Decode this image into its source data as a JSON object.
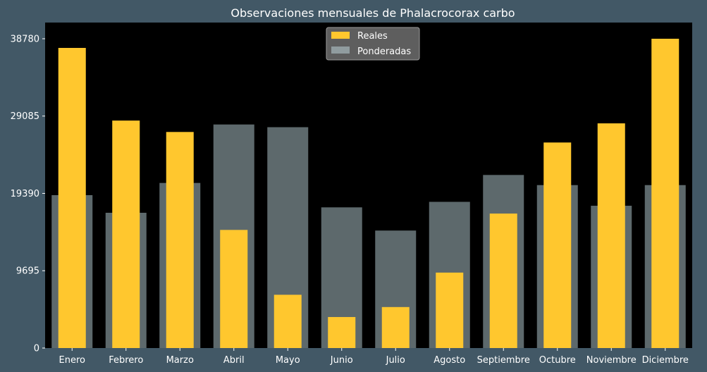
{
  "chart_data": {
    "type": "bar",
    "title": "Observaciones mensuales de Phalacrocorax carbo",
    "xlabel": "",
    "ylabel": "",
    "categories": [
      "Enero",
      "Febrero",
      "Marzo",
      "Abril",
      "Mayo",
      "Junio",
      "Julio",
      "Agosto",
      "Septiembre",
      "Octubre",
      "Noviembre",
      "Diciembre"
    ],
    "series": [
      {
        "name": "Reales",
        "color": "#ffc72e",
        "values": [
          37630,
          28520,
          27090,
          14810,
          6680,
          3890,
          5140,
          9460,
          16860,
          25770,
          28170,
          38780
        ]
      },
      {
        "name": "Ponderadas",
        "color": "#cfe8f0",
        "values": [
          19170,
          16960,
          20700,
          28030,
          27690,
          17640,
          14730,
          18330,
          21700,
          20430,
          17840,
          20430
        ]
      }
    ],
    "yticks": [
      "0",
      "9695",
      "19390",
      "29085",
      "38780"
    ],
    "ylim": [
      0,
      40810
    ],
    "legend_position": "top-center",
    "grid": false
  }
}
